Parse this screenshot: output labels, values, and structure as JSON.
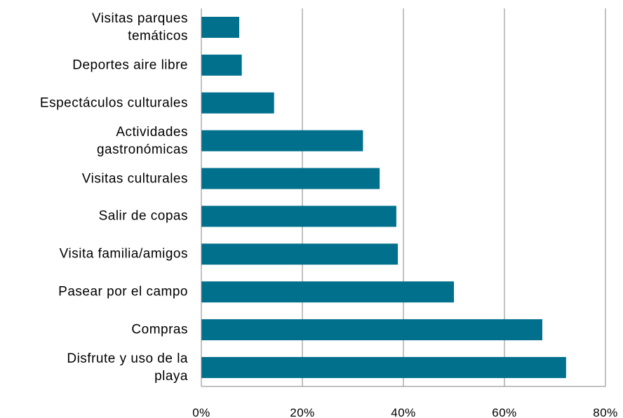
{
  "chart_data": {
    "type": "hbar",
    "categories": [
      "Visitas parques\ntemáticos",
      "Deportes aire libre",
      "Espectáculos culturales",
      "Actividades\ngastronómicas",
      "Visitas culturales",
      "Salir de copas",
      "Visita familia/amigos",
      "Pasear por el campo",
      "Compras",
      "Disfrute  y uso de la\nplaya"
    ],
    "values": [
      7.5,
      8,
      14.4,
      32,
      35.3,
      38.6,
      38.9,
      50,
      67.5,
      72.2
    ],
    "color": "#00708c",
    "xlim": [
      0,
      80
    ],
    "xticks": [
      {
        "value": 0,
        "label": "0%"
      },
      {
        "value": 20,
        "label": "20%"
      },
      {
        "value": 40,
        "label": "40%"
      },
      {
        "value": 60,
        "label": "60%"
      },
      {
        "value": 80,
        "label": "80%"
      }
    ],
    "grid": true
  }
}
